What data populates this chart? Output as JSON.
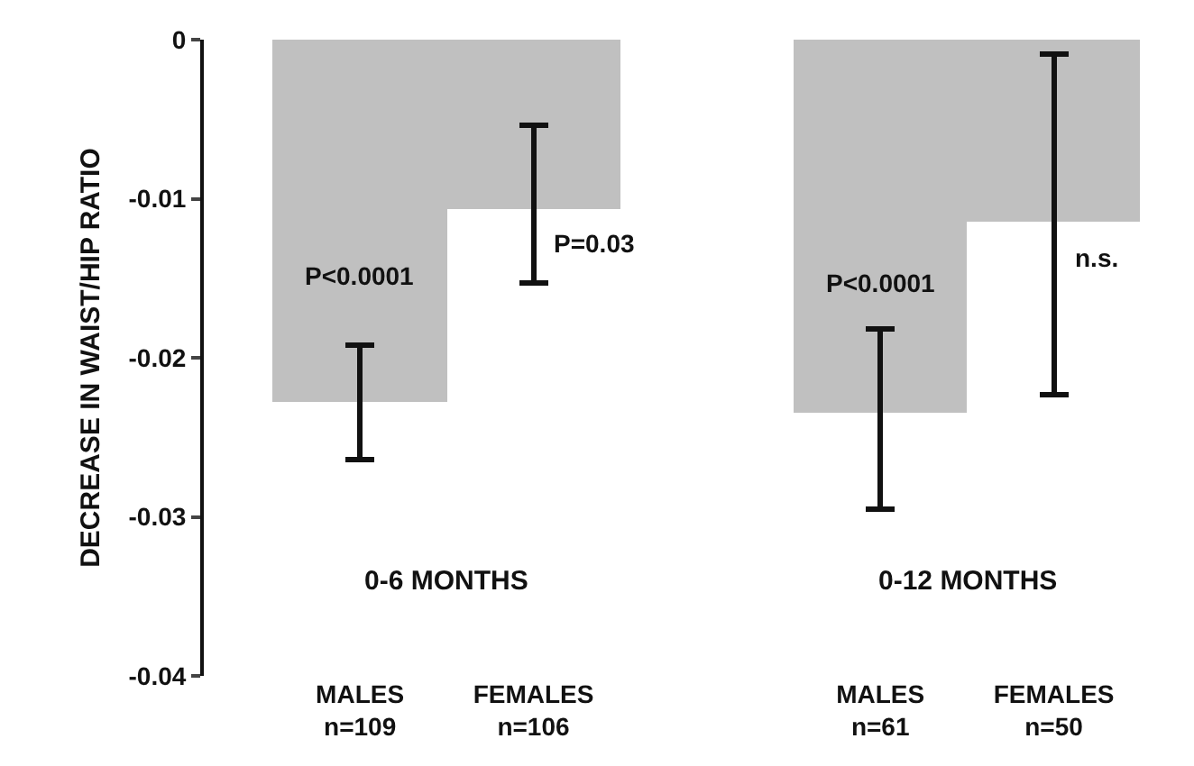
{
  "chart_data": {
    "type": "bar",
    "ylabel": "DECREASE IN WAIST/HIP RATIO",
    "categories": [
      "MALES\nn=109",
      "FEMALES\nn=106",
      null,
      "MALES\nn=61",
      "FEMALES\nn=50"
    ],
    "values": [
      -0.0228,
      -0.0106,
      null,
      -0.0235,
      -0.0115
    ],
    "errors": [
      [
        -0.0264,
        -0.0192
      ],
      [
        -0.0153,
        -0.0054
      ],
      null,
      [
        -0.0295,
        -0.0182
      ],
      [
        -0.0223,
        -0.0009
      ]
    ],
    "color": "#c0c0c0",
    "ylim": [
      -0.04,
      0
    ],
    "yticks": [
      {
        "value": -0.04,
        "label": "-0.04"
      },
      {
        "value": -0.03,
        "label": "-0.03"
      },
      {
        "value": -0.02,
        "label": "-0.02"
      },
      {
        "value": -0.01,
        "label": "-0.01"
      },
      {
        "value": 0,
        "label": "0"
      }
    ],
    "grid": false,
    "annotations": [
      "P<0.0001",
      "P=0.03",
      "P<0.0001",
      "n.s.",
      "0-6 MONTHS",
      "0-12 MONTHS"
    ]
  }
}
